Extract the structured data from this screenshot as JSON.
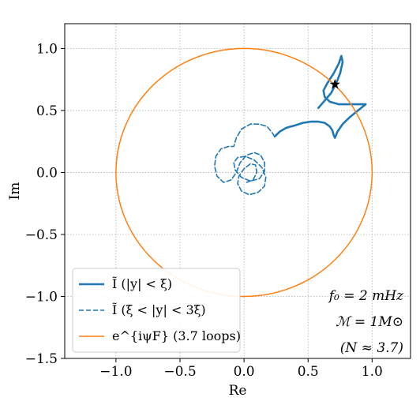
{
  "chart_data": {
    "type": "line",
    "xlabel": "Re",
    "ylabel": "Im",
    "xlim": [
      -1.4,
      1.3
    ],
    "ylim": [
      -1.5,
      1.2
    ],
    "x_ticks": [
      -1.0,
      -0.5,
      0.0,
      0.5,
      1.0
    ],
    "x_tick_labels": [
      "−1.0",
      "−0.5",
      "0.0",
      "0.5",
      "1.0"
    ],
    "y_ticks": [
      -1.5,
      -1.0,
      -0.5,
      0.0,
      0.5,
      1.0
    ],
    "y_tick_labels": [
      "−1.5",
      "−1.0",
      "−0.5",
      "0.0",
      "0.5",
      "1.0"
    ],
    "grid": true,
    "legend_position": "lower-left",
    "colors": {
      "blue": "#1f77b4",
      "orange": "#ff7f0e"
    },
    "series": [
      {
        "name": "Ĩ (|y| < ξ)",
        "style": "solid",
        "color": "#1f77b4",
        "x": [
          0.58,
          0.63,
          0.68,
          0.72,
          0.75,
          0.77,
          0.76,
          0.74,
          0.7,
          0.65,
          0.62,
          0.63,
          0.67,
          0.74,
          0.82,
          0.89,
          0.95,
          0.89,
          0.82,
          0.77,
          0.73,
          0.71,
          0.7,
          0.69,
          0.67,
          0.63,
          0.58,
          0.52,
          0.46,
          0.4,
          0.33,
          0.28,
          0.25,
          0.24
        ],
        "y": [
          0.52,
          0.58,
          0.64,
          0.72,
          0.8,
          0.89,
          0.94,
          0.88,
          0.8,
          0.72,
          0.66,
          0.61,
          0.57,
          0.55,
          0.55,
          0.55,
          0.55,
          0.5,
          0.44,
          0.39,
          0.33,
          0.28,
          0.3,
          0.34,
          0.37,
          0.4,
          0.41,
          0.41,
          0.4,
          0.38,
          0.36,
          0.33,
          0.3,
          0.29
        ]
      },
      {
        "name": "Ĩ (ξ < |y| < 3ξ)",
        "style": "dashed",
        "color": "#1f77b4",
        "x": [
          0.24,
          0.22,
          0.18,
          0.12,
          0.05,
          -0.02,
          -0.06,
          -0.08,
          -0.12,
          -0.18,
          -0.22,
          -0.23,
          -0.21,
          -0.16,
          -0.1,
          -0.06,
          -0.03,
          0.02,
          0.08,
          0.13,
          0.16,
          0.16,
          0.12,
          0.05,
          -0.02,
          -0.07,
          -0.08,
          -0.05,
          0.01,
          0.08,
          0.14,
          0.17,
          0.16,
          0.11,
          0.04,
          -0.02,
          -0.05,
          -0.04,
          0.0,
          0.05,
          0.09,
          0.1,
          0.07,
          0.02
        ],
        "y": [
          0.29,
          0.32,
          0.37,
          0.39,
          0.39,
          0.35,
          0.28,
          0.21,
          0.21,
          0.19,
          0.13,
          0.05,
          -0.03,
          -0.08,
          -0.06,
          0.0,
          0.08,
          0.14,
          0.16,
          0.14,
          0.08,
          0.01,
          -0.05,
          -0.07,
          -0.04,
          0.02,
          0.08,
          0.12,
          0.13,
          0.1,
          0.04,
          -0.04,
          -0.11,
          -0.16,
          -0.18,
          -0.15,
          -0.09,
          -0.03,
          0.03,
          0.07,
          0.06,
          0.0,
          -0.06,
          -0.08
        ]
      },
      {
        "name": "e^{iψ_F} (3.7 loops)",
        "style": "solid",
        "color": "#ff7f0e",
        "shape": "circle",
        "center": [
          0,
          0
        ],
        "radius": 1.0
      }
    ],
    "marker": {
      "symbol": "star",
      "x": 0.71,
      "y": 0.71,
      "color": "#000000"
    },
    "legend": [
      {
        "label": "Ĩ (|y| < ξ)",
        "style": "solid",
        "color": "#1f77b4"
      },
      {
        "label": "Ĩ (ξ < |y| < 3ξ)",
        "style": "dashed",
        "color": "#1f77b4"
      },
      {
        "label": "e^{iψF} (3.7 loops)",
        "style": "solid",
        "color": "#ff7f0e"
      }
    ],
    "annotations": [
      "f₀ = 2 mHz",
      "ℳ = 1M⊙",
      "(N ≈ 3.7)"
    ]
  }
}
